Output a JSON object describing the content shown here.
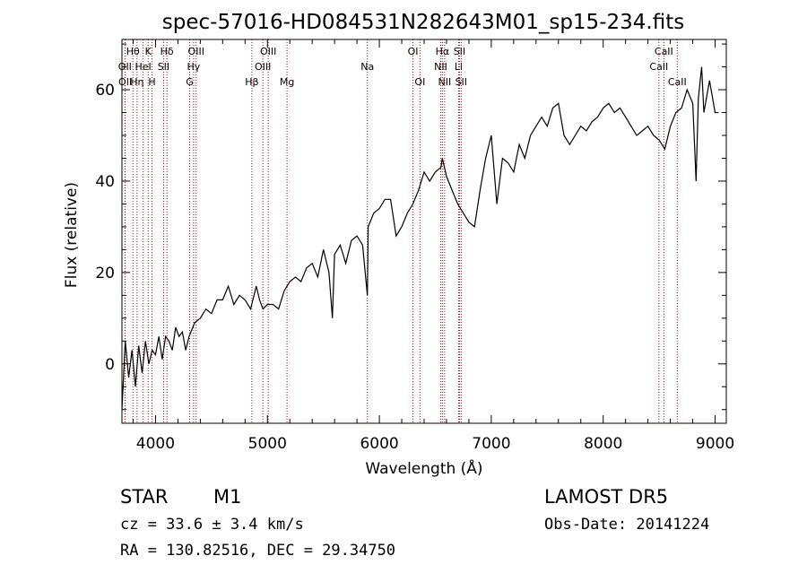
{
  "chart_data": {
    "type": "line",
    "title": "spec-57016-HD084531N282643M01_sp15-234.fits",
    "xlabel": "Wavelength (Å)",
    "ylabel": "Flux (relative)",
    "xlim": [
      3700,
      9100
    ],
    "ylim": [
      -13,
      71
    ],
    "x_ticks": [
      4000,
      5000,
      6000,
      7000,
      8000,
      9000
    ],
    "y_ticks": [
      0,
      20,
      40,
      60
    ],
    "x_tick_labels": [
      "4000",
      "5000",
      "6000",
      "7000",
      "8000",
      "9000"
    ],
    "y_tick_labels": [
      "0",
      "20",
      "40",
      "60"
    ],
    "grid": false,
    "line_color": "#000000",
    "marker_color": "#c00000",
    "series": [
      {
        "x": [
          3700,
          3730,
          3760,
          3790,
          3820,
          3850,
          3880,
          3910,
          3940,
          3970,
          4000,
          4030,
          4060,
          4090,
          4120,
          4150,
          4180,
          4210,
          4240,
          4270,
          4300,
          4350,
          4400,
          4450,
          4500,
          4550,
          4600,
          4650,
          4700,
          4750,
          4800,
          4850,
          4880,
          4900,
          4930,
          4960,
          5000,
          5050,
          5100,
          5150,
          5200,
          5250,
          5300,
          5350,
          5400,
          5450,
          5500,
          5550,
          5580,
          5600,
          5650,
          5700,
          5750,
          5800,
          5850,
          5893,
          5900,
          5950,
          6000,
          6050,
          6100,
          6150,
          6200,
          6250,
          6300,
          6350,
          6400,
          6450,
          6500,
          6550,
          6563,
          6600,
          6650,
          6700,
          6750,
          6800,
          6850,
          6900,
          6950,
          7000,
          7050,
          7100,
          7150,
          7200,
          7250,
          7300,
          7350,
          7400,
          7450,
          7500,
          7550,
          7600,
          7650,
          7700,
          7750,
          7800,
          7850,
          7900,
          7950,
          8000,
          8050,
          8100,
          8150,
          8200,
          8250,
          8300,
          8350,
          8400,
          8450,
          8500,
          8550,
          8600,
          8650,
          8700,
          8750,
          8800,
          8830,
          8850,
          8880,
          8900,
          8950,
          9000,
          9030
        ],
        "y": [
          -10,
          5,
          -3,
          3,
          -5,
          4,
          -2,
          5,
          0,
          3,
          2,
          6,
          1,
          6,
          5,
          3,
          8,
          6,
          7,
          3,
          6,
          9,
          10,
          12,
          11,
          14,
          14,
          17,
          13,
          15,
          14,
          12,
          15,
          17,
          14,
          12,
          13,
          13,
          12,
          16,
          18,
          19,
          18,
          21,
          22,
          19,
          25,
          20,
          10,
          24,
          26,
          22,
          27,
          28,
          26,
          15,
          30,
          33,
          34,
          36,
          36,
          28,
          30,
          33,
          35,
          38,
          42,
          40,
          42,
          43,
          45,
          41,
          38,
          35,
          33,
          31,
          30,
          38,
          45,
          50,
          35,
          45,
          44,
          42,
          48,
          45,
          50,
          52,
          54,
          52,
          56,
          57,
          50,
          48,
          50,
          52,
          51,
          53,
          54,
          56,
          57,
          55,
          56,
          54,
          52,
          50,
          51,
          52,
          50,
          49,
          47,
          52,
          55,
          56,
          60,
          57,
          40,
          58,
          65,
          55,
          62,
          55,
          55
        ]
      }
    ],
    "annotations": [
      {
        "label": "Hθ",
        "x": 3798,
        "row": 1
      },
      {
        "label": "OII",
        "x": 3727,
        "row": 2
      },
      {
        "label": "OII",
        "x": 3729,
        "row": 3
      },
      {
        "label": "K",
        "x": 3934,
        "row": 1
      },
      {
        "label": "HeI",
        "x": 3889,
        "row": 2
      },
      {
        "label": "Hη",
        "x": 3835,
        "row": 3
      },
      {
        "label": "H",
        "x": 3969,
        "row": 3
      },
      {
        "label": "Hδ",
        "x": 4102,
        "row": 1
      },
      {
        "label": "SII",
        "x": 4072,
        "row": 2
      },
      {
        "label": "OIII",
        "x": 4363,
        "row": 1
      },
      {
        "label": "Hγ",
        "x": 4340,
        "row": 2
      },
      {
        "label": "G",
        "x": 4305,
        "row": 3
      },
      {
        "label": "OIII",
        "x": 5007,
        "row": 1
      },
      {
        "label": "OIII",
        "x": 4959,
        "row": 2
      },
      {
        "label": "Hβ",
        "x": 4861,
        "row": 3
      },
      {
        "label": "Mg",
        "x": 5175,
        "row": 3
      },
      {
        "label": "Na",
        "x": 5893,
        "row": 2
      },
      {
        "label": "OI",
        "x": 6300,
        "row": 1
      },
      {
        "label": "OI",
        "x": 6363,
        "row": 3
      },
      {
        "label": "Hα",
        "x": 6563,
        "row": 1
      },
      {
        "label": "SII",
        "x": 6716,
        "row": 1
      },
      {
        "label": "NII",
        "x": 6548,
        "row": 2
      },
      {
        "label": "Li",
        "x": 6708,
        "row": 2
      },
      {
        "label": "NII",
        "x": 6583,
        "row": 3
      },
      {
        "label": "SII",
        "x": 6731,
        "row": 3
      },
      {
        "label": "CaII",
        "x": 8542,
        "row": 1
      },
      {
        "label": "CaII",
        "x": 8498,
        "row": 2
      },
      {
        "label": "CaII",
        "x": 8662,
        "row": 3
      }
    ]
  },
  "info": {
    "class_label": "STAR",
    "subclass_label": "M1",
    "survey": "LAMOST DR5",
    "cz": "cz = 33.6 ± 3.4 km/s",
    "obs_date": "Obs-Date: 20141224",
    "coords": "RA = 130.82516, DEC =  29.34750"
  }
}
